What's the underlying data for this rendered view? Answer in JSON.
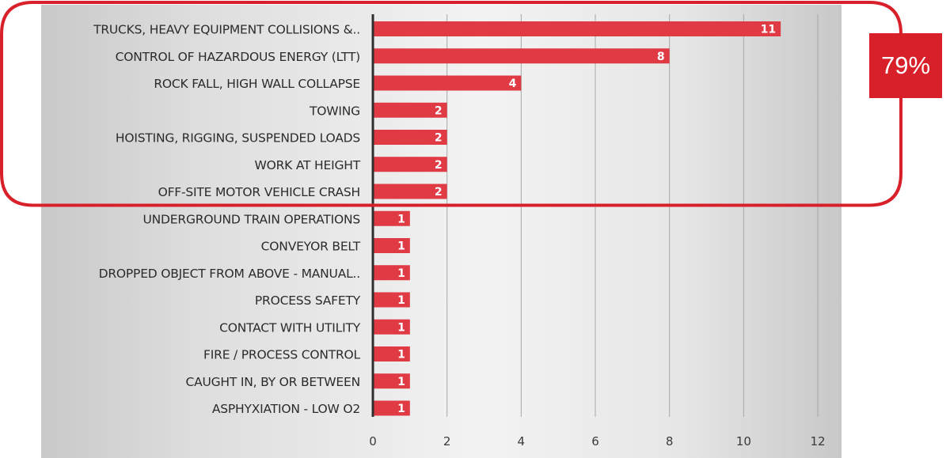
{
  "chart_data": {
    "type": "bar",
    "orientation": "horizontal",
    "title": "",
    "xlabel": "",
    "ylabel": "",
    "categories": [
      "TRUCKS, HEAVY EQUIPMENT COLLISIONS &..",
      "CONTROL OF HAZARDOUS ENERGY (LTT)",
      "ROCK FALL, HIGH WALL COLLAPSE",
      "TOWING",
      "HOISTING, RIGGING, SUSPENDED LOADS",
      "WORK AT HEIGHT",
      "OFF-SITE MOTOR VEHICLE CRASH",
      "UNDERGROUND TRAIN OPERATIONS",
      "CONVEYOR BELT",
      "DROPPED OBJECT FROM ABOVE - MANUAL..",
      "PROCESS SAFETY",
      "CONTACT WITH UTILITY",
      "FIRE / PROCESS CONTROL",
      "CAUGHT IN, BY OR BETWEEN",
      "ASPHYXIATION - LOW O2"
    ],
    "values": [
      11,
      8,
      4,
      2,
      2,
      2,
      2,
      1,
      1,
      1,
      1,
      1,
      1,
      1,
      1
    ],
    "data_labels": [
      "11",
      "8",
      "4",
      "2",
      "2",
      "2",
      "2",
      "1",
      "1",
      "1",
      "1",
      "1",
      "1",
      "1",
      "1"
    ],
    "xlim": [
      0,
      12
    ],
    "x_ticks": [
      0,
      2,
      4,
      6,
      8,
      10,
      12
    ],
    "x_tick_labels": [
      "0",
      "2",
      "4",
      "6",
      "8",
      "10",
      "12"
    ],
    "grid": "vertical",
    "legend": "none",
    "bar_color": "#e03a45",
    "highlight": {
      "categories_highlighted": 7,
      "annotation": "79%",
      "outline_color": "#d8202a"
    }
  }
}
